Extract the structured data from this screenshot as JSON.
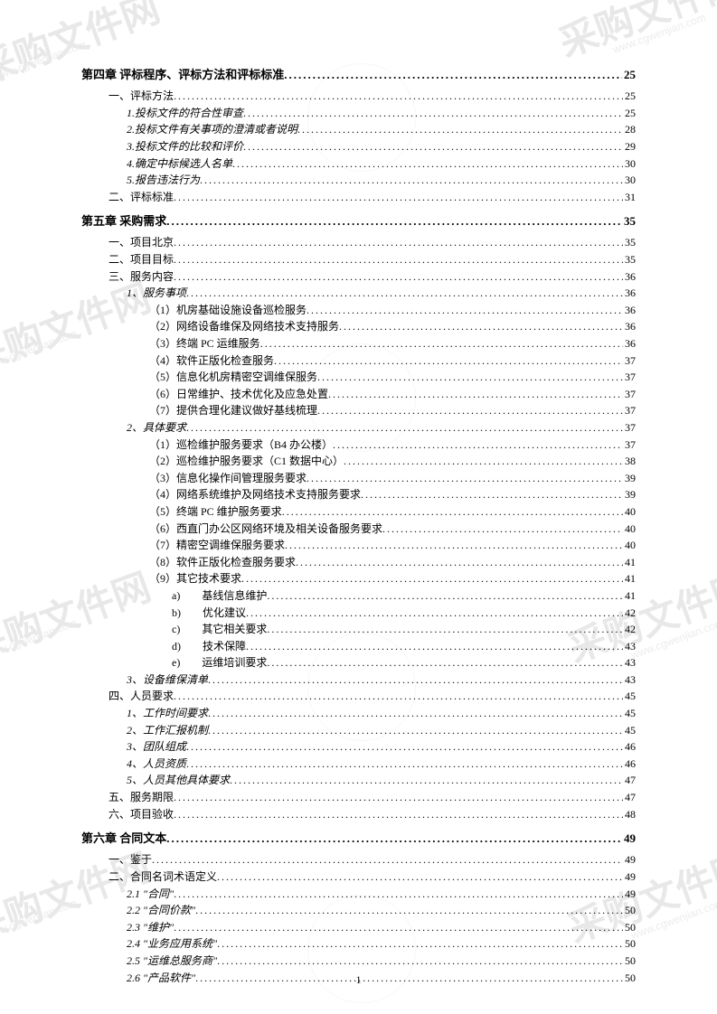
{
  "watermarks": {
    "text": "采购文件网",
    "url": "www.cgwenjian.com"
  },
  "pageNumber": "1",
  "toc": [
    {
      "level": "chapter",
      "label": "第四章 评标程序、评标方法和评标标准",
      "page": "25"
    },
    {
      "level": 1,
      "label": "一、评标方法",
      "page": "25"
    },
    {
      "level": 2,
      "italic": true,
      "label": "1.投标文件的符合性审查",
      "page": "25"
    },
    {
      "level": 2,
      "italic": true,
      "label": "2.投标文件有关事项的澄清或者说明",
      "page": "28"
    },
    {
      "level": 2,
      "italic": true,
      "label": "3.投标文件的比较和评价",
      "page": "29"
    },
    {
      "level": 2,
      "italic": true,
      "label": "4.确定中标候选人名单",
      "page": "30"
    },
    {
      "level": 2,
      "italic": true,
      "label": "5.报告违法行为",
      "page": "30"
    },
    {
      "level": 1,
      "label": "二、评标标准",
      "page": "31"
    },
    {
      "level": "chapter",
      "label": "第五章 采购需求",
      "page": "35"
    },
    {
      "level": 1,
      "label": "一、项目北京",
      "page": "35"
    },
    {
      "level": 1,
      "label": "二、项目目标",
      "page": "35"
    },
    {
      "level": 1,
      "label": "三、服务内容",
      "page": "36"
    },
    {
      "level": 2,
      "italic": true,
      "label": "1、服务事项",
      "page": "36"
    },
    {
      "level": 3,
      "label": "（1）机房基础设施设备巡检服务",
      "page": "36"
    },
    {
      "level": 3,
      "label": "（2）网络设备维保及网络技术支持服务",
      "page": "36"
    },
    {
      "level": 3,
      "label": "（3）终端 PC 运维服务",
      "page": "36"
    },
    {
      "level": 3,
      "label": "（4）软件正版化检查服务",
      "page": "37"
    },
    {
      "level": 3,
      "label": "（5）信息化机房精密空调维保服务",
      "page": "37"
    },
    {
      "level": 3,
      "label": "（6）日常维护、技术优化及应急处置",
      "page": "37"
    },
    {
      "level": 3,
      "label": "（7）提供合理化建议做好基线梳理",
      "page": "37"
    },
    {
      "level": 2,
      "italic": true,
      "label": "2、具体要求",
      "page": "37"
    },
    {
      "level": 3,
      "label": "（1）巡检维护服务要求（B4 办公楼）",
      "page": "37"
    },
    {
      "level": 3,
      "label": "（2）巡检维护服务要求（C1 数据中心）",
      "page": "38"
    },
    {
      "level": 3,
      "label": "（3）信息化操作间管理服务要求",
      "page": "39"
    },
    {
      "level": 3,
      "label": "（4）网络系统维护及网络技术支持服务要求",
      "page": "39"
    },
    {
      "level": 3,
      "label": "（5）终端 PC 维护服务要求",
      "page": "40"
    },
    {
      "level": 3,
      "label": "（6）西直门办公区网络环境及相关设备服务要求",
      "page": "40"
    },
    {
      "level": 3,
      "label": "（7）精密空调维保服务要求",
      "page": "40"
    },
    {
      "level": 3,
      "label": "（8）软件正版化检查服务要求",
      "page": "41"
    },
    {
      "level": 3,
      "label": "（9）其它技术要求",
      "page": "41"
    },
    {
      "level": 4,
      "label": "a)　　基线信息维护",
      "page": "41"
    },
    {
      "level": 4,
      "label": "b)　　优化建议",
      "page": "42"
    },
    {
      "level": 4,
      "label": "c)　　其它相关要求",
      "page": "42"
    },
    {
      "level": 4,
      "label": "d)　　技术保障",
      "page": "43"
    },
    {
      "level": 4,
      "label": "e)　　运维培训要求",
      "page": "43"
    },
    {
      "level": 2,
      "italic": true,
      "label": "3、设备维保清单",
      "page": "43"
    },
    {
      "level": 1,
      "label": "四、人员要求",
      "page": "45"
    },
    {
      "level": 2,
      "italic": true,
      "label": "1、工作时间要求",
      "page": "45"
    },
    {
      "level": 2,
      "italic": true,
      "label": "2、工作汇报机制",
      "page": "45"
    },
    {
      "level": 2,
      "italic": true,
      "label": "3、团队组成",
      "page": "46"
    },
    {
      "level": 2,
      "italic": true,
      "label": "4、人员资质",
      "page": "46"
    },
    {
      "level": 2,
      "italic": true,
      "label": "5、人员其他具体要求",
      "page": "47"
    },
    {
      "level": 1,
      "label": "五、服务期限",
      "page": "47"
    },
    {
      "level": 1,
      "label": "六、项目验收",
      "page": "48"
    },
    {
      "level": "chapter",
      "label": "第六章 合同文本",
      "page": "49"
    },
    {
      "level": 1,
      "label": "一、鉴于",
      "page": "49"
    },
    {
      "level": 1,
      "label": "二、合同名词术语定义",
      "page": "49"
    },
    {
      "level": 2,
      "italic": true,
      "label": "2.1 \"合同\"",
      "page": "49"
    },
    {
      "level": 2,
      "italic": true,
      "label": "2.2 \"合同价款\"",
      "page": "50"
    },
    {
      "level": 2,
      "italic": true,
      "label": "2.3 \"维护\"",
      "page": "50"
    },
    {
      "level": 2,
      "italic": true,
      "label": "2.4 \"业务应用系统\"",
      "page": "50"
    },
    {
      "level": 2,
      "italic": true,
      "label": "2.5 \"运维总服务商\"",
      "page": "50"
    },
    {
      "level": 2,
      "italic": true,
      "label": "2.6 \"产品软件\"",
      "page": "50"
    }
  ]
}
